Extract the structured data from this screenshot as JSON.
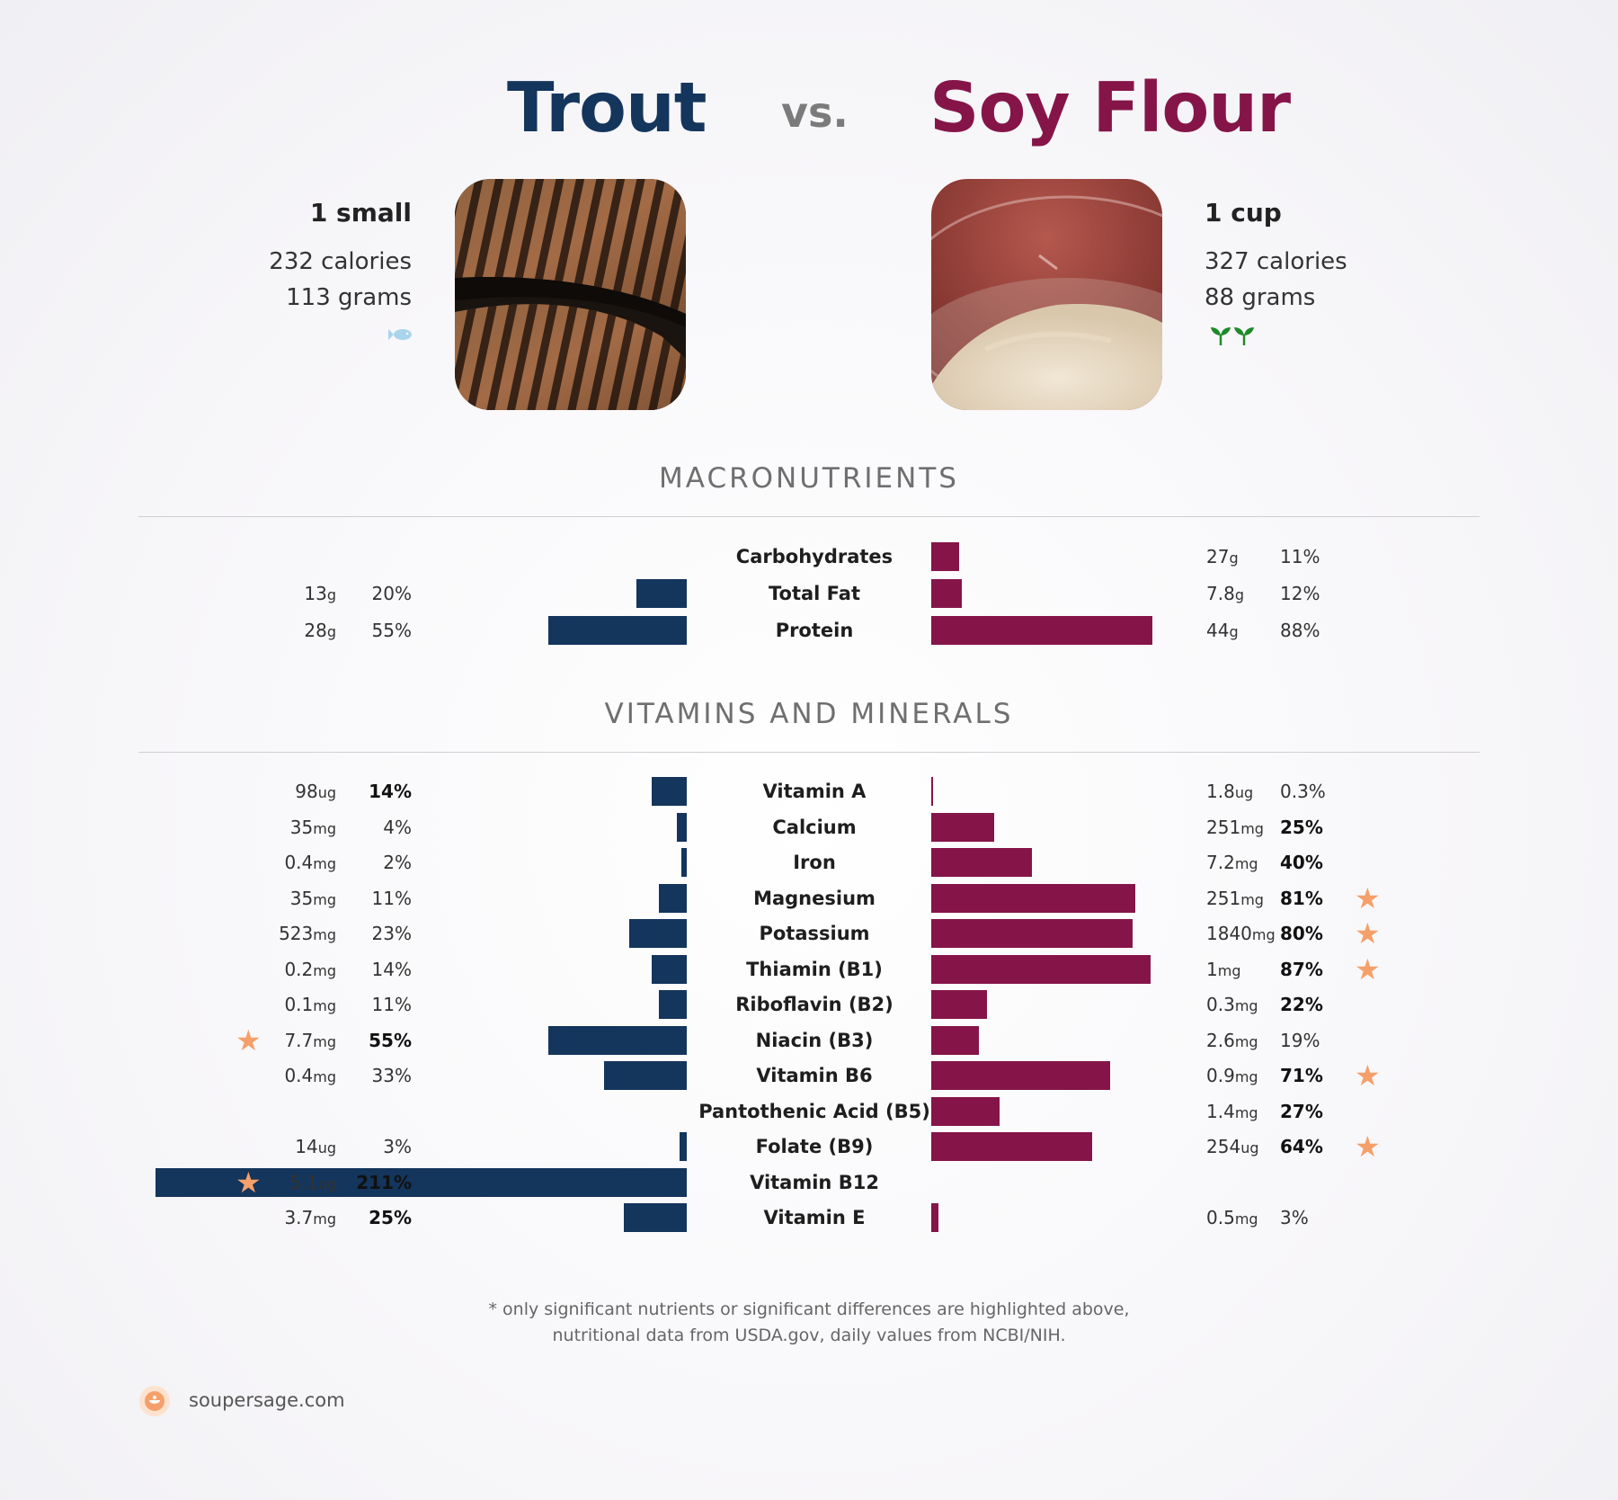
{
  "header": {
    "left_title": "Trout",
    "vs": "vs.",
    "right_title": "Soy Flour"
  },
  "left_food": {
    "serving": "1 small",
    "calories": "232 calories",
    "grams": "113 grams",
    "icon": "fish-icon"
  },
  "right_food": {
    "serving": "1 cup",
    "calories": "327 calories",
    "grams": "88 grams",
    "icon": "sprout-icon"
  },
  "colors": {
    "left": "#14355c",
    "right": "#851549",
    "star": "#f5a06a"
  },
  "sections": {
    "macros": "MACRONUTRIENTS",
    "vitamins": "VITAMINS AND MINERALS"
  },
  "chart_data": {
    "type": "bar",
    "series": [
      {
        "name": "Trout"
      },
      {
        "name": "Soy Flour"
      }
    ],
    "macros": [
      {
        "label": "Carbohydrates",
        "left": null,
        "right": {
          "amount": "27",
          "unit": "g",
          "pct": 11,
          "pct_text": "11%",
          "bold": false,
          "star": false
        }
      },
      {
        "label": "Total Fat",
        "left": {
          "amount": "13",
          "unit": "g",
          "pct": 20,
          "pct_text": "20%",
          "bold": false,
          "star": false
        },
        "right": {
          "amount": "7.8",
          "unit": "g",
          "pct": 12,
          "pct_text": "12%",
          "bold": false,
          "star": false
        }
      },
      {
        "label": "Protein",
        "left": {
          "amount": "28",
          "unit": "g",
          "pct": 55,
          "pct_text": "55%",
          "bold": false,
          "star": false
        },
        "right": {
          "amount": "44",
          "unit": "g",
          "pct": 88,
          "pct_text": "88%",
          "bold": false,
          "star": false
        }
      }
    ],
    "vitamins": [
      {
        "label": "Vitamin A",
        "left": {
          "amount": "98",
          "unit": "ug",
          "pct": 14,
          "pct_text": "14%",
          "bold": true,
          "star": false
        },
        "right": {
          "amount": "1.8",
          "unit": "ug",
          "pct": 0.3,
          "pct_text": "0.3%",
          "bold": false,
          "star": false
        }
      },
      {
        "label": "Calcium",
        "left": {
          "amount": "35",
          "unit": "mg",
          "pct": 4,
          "pct_text": "4%",
          "bold": false,
          "star": false
        },
        "right": {
          "amount": "251",
          "unit": "mg",
          "pct": 25,
          "pct_text": "25%",
          "bold": true,
          "star": false
        }
      },
      {
        "label": "Iron",
        "left": {
          "amount": "0.4",
          "unit": "mg",
          "pct": 2,
          "pct_text": "2%",
          "bold": false,
          "star": false
        },
        "right": {
          "amount": "7.2",
          "unit": "mg",
          "pct": 40,
          "pct_text": "40%",
          "bold": true,
          "star": false
        }
      },
      {
        "label": "Magnesium",
        "left": {
          "amount": "35",
          "unit": "mg",
          "pct": 11,
          "pct_text": "11%",
          "bold": false,
          "star": false
        },
        "right": {
          "amount": "251",
          "unit": "mg",
          "pct": 81,
          "pct_text": "81%",
          "bold": true,
          "star": true
        }
      },
      {
        "label": "Potassium",
        "left": {
          "amount": "523",
          "unit": "mg",
          "pct": 23,
          "pct_text": "23%",
          "bold": false,
          "star": false
        },
        "right": {
          "amount": "1840",
          "unit": "mg",
          "pct": 80,
          "pct_text": "80%",
          "bold": true,
          "star": true
        }
      },
      {
        "label": "Thiamin (B1)",
        "left": {
          "amount": "0.2",
          "unit": "mg",
          "pct": 14,
          "pct_text": "14%",
          "bold": false,
          "star": false
        },
        "right": {
          "amount": "1",
          "unit": "mg",
          "pct": 87,
          "pct_text": "87%",
          "bold": true,
          "star": true
        }
      },
      {
        "label": "Riboflavin (B2)",
        "left": {
          "amount": "0.1",
          "unit": "mg",
          "pct": 11,
          "pct_text": "11%",
          "bold": false,
          "star": false
        },
        "right": {
          "amount": "0.3",
          "unit": "mg",
          "pct": 22,
          "pct_text": "22%",
          "bold": true,
          "star": false
        }
      },
      {
        "label": "Niacin (B3)",
        "left": {
          "amount": "7.7",
          "unit": "mg",
          "pct": 55,
          "pct_text": "55%",
          "bold": true,
          "star": true
        },
        "right": {
          "amount": "2.6",
          "unit": "mg",
          "pct": 19,
          "pct_text": "19%",
          "bold": false,
          "star": false
        }
      },
      {
        "label": "Vitamin B6",
        "left": {
          "amount": "0.4",
          "unit": "mg",
          "pct": 33,
          "pct_text": "33%",
          "bold": false,
          "star": false
        },
        "right": {
          "amount": "0.9",
          "unit": "mg",
          "pct": 71,
          "pct_text": "71%",
          "bold": true,
          "star": true
        }
      },
      {
        "label": "Pantothenic Acid (B5)",
        "left": null,
        "right": {
          "amount": "1.4",
          "unit": "mg",
          "pct": 27,
          "pct_text": "27%",
          "bold": true,
          "star": false
        }
      },
      {
        "label": "Folate (B9)",
        "left": {
          "amount": "14",
          "unit": "ug",
          "pct": 3,
          "pct_text": "3%",
          "bold": false,
          "star": false
        },
        "right": {
          "amount": "254",
          "unit": "ug",
          "pct": 64,
          "pct_text": "64%",
          "bold": true,
          "star": true
        }
      },
      {
        "label": "Vitamin B12",
        "left": {
          "amount": "5.1",
          "unit": "ug",
          "pct": 211,
          "pct_text": "211%",
          "bold": true,
          "star": true
        },
        "right": null
      },
      {
        "label": "Vitamin E",
        "left": {
          "amount": "3.7",
          "unit": "mg",
          "pct": 25,
          "pct_text": "25%",
          "bold": true,
          "star": false
        },
        "right": {
          "amount": "0.5",
          "unit": "mg",
          "pct": 3,
          "pct_text": "3%",
          "bold": false,
          "star": false
        }
      }
    ]
  },
  "footnote": {
    "line1": "* only significant nutrients or significant differences are highlighted above,",
    "line2": "nutritional data from USDA.gov, daily values from NCBI/NIH."
  },
  "brand": {
    "name": "soupersage.com",
    "icon": "soupersage-logo-icon"
  }
}
